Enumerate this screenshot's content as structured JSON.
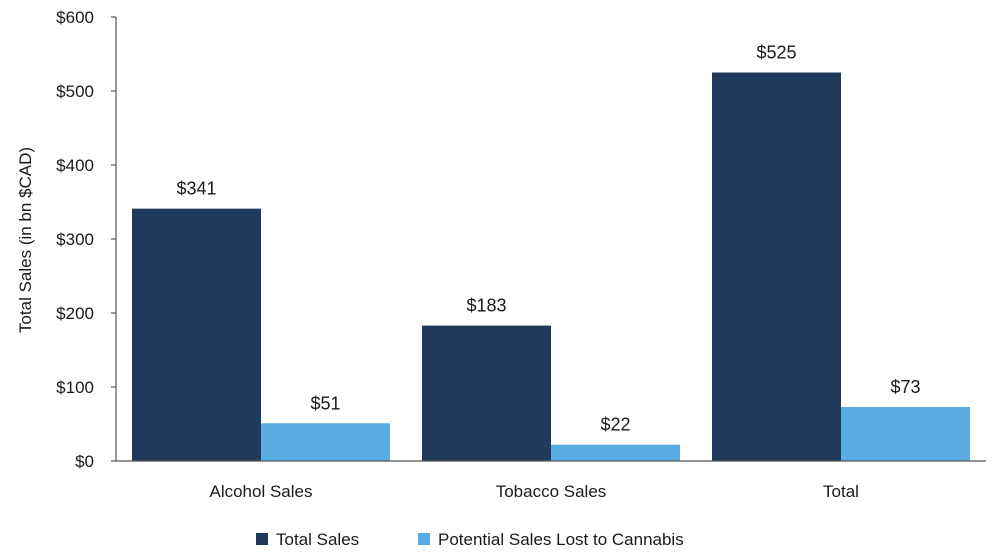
{
  "chart_data": {
    "type": "bar",
    "categories": [
      "Alcohol Sales",
      "Tobacco Sales",
      "Total"
    ],
    "series": [
      {
        "name": "Total Sales",
        "values": [
          341,
          183,
          525
        ],
        "labels": [
          "$341",
          "$183",
          "$525"
        ],
        "color": "#203a5c"
      },
      {
        "name": "Potential Sales Lost to Cannabis",
        "values": [
          51,
          22,
          73
        ],
        "labels": [
          "$51",
          "$22",
          "$73"
        ],
        "color": "#5aade2"
      }
    ],
    "title": "",
    "xlabel": "",
    "ylabel": "Total Sales (in bn $CAD)",
    "ylim": [
      0,
      600
    ],
    "yticks": [
      0,
      100,
      200,
      300,
      400,
      500,
      600
    ],
    "ytick_labels": [
      "$0",
      "$100",
      "$200",
      "$300",
      "$400",
      "$500",
      "$600"
    ],
    "grid": false,
    "legend_position": "bottom"
  }
}
